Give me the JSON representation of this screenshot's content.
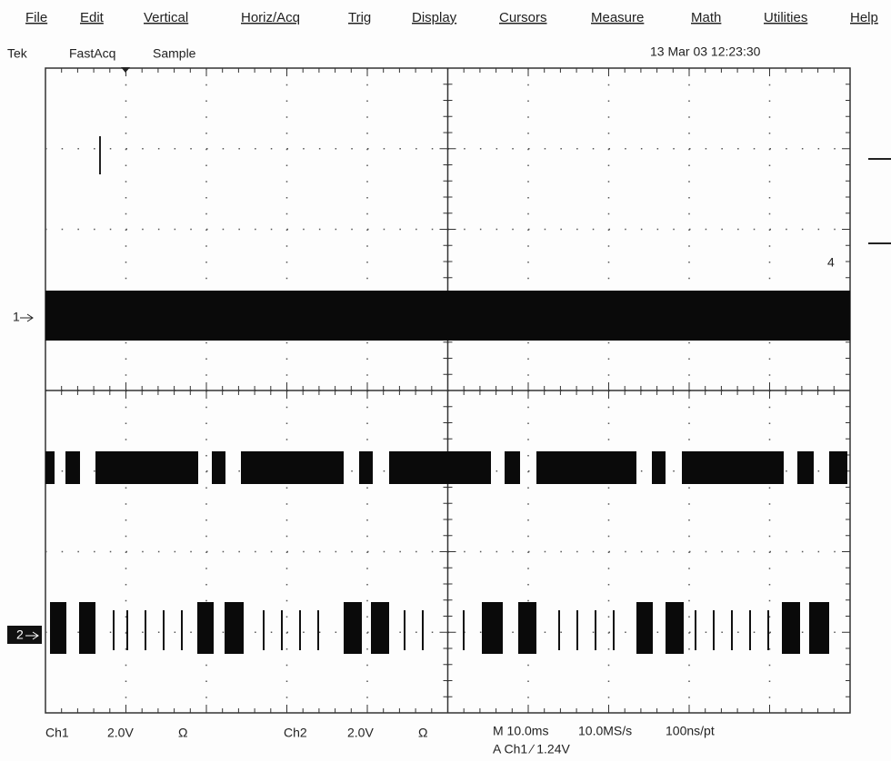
{
  "menu": [
    "File",
    "Edit",
    "Vertical",
    "Horiz/Acq",
    "Trig",
    "Display",
    "Cursors",
    "Measure",
    "Math",
    "Utilities",
    "Help"
  ],
  "status": {
    "brand": "Tek",
    "mode": "FastAcq",
    "acquisition": "Sample",
    "timestamp": "13 Mar 03 12:23:30"
  },
  "markers": {
    "ch1": "1",
    "ch2": "2",
    "ref": "4"
  },
  "readout": {
    "ch1_label": "Ch1",
    "ch1_scale": "2.0V",
    "ch1_coupling": "Ω",
    "ch2_label": "Ch2",
    "ch2_scale": "2.0V",
    "ch2_coupling": "Ω",
    "timebase": "M 10.0ms",
    "sample_rate": "10.0MS/s",
    "resolution": "100ns/pt",
    "trigger": "A Ch1 ∕ 1.24V"
  }
}
